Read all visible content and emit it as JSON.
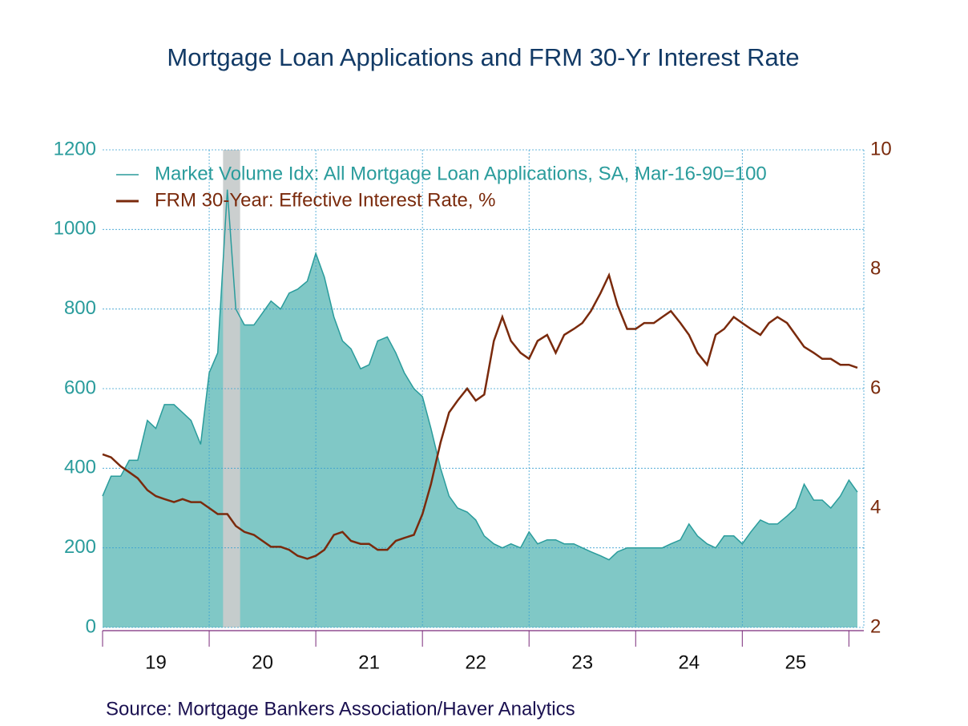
{
  "chart_data": {
    "type": "area-line",
    "title": "Mortgage Loan Applications and FRM 30-Yr Interest Rate",
    "source": "Source:  Mortgage Bankers Association/Haver Analytics",
    "legend": "top-left",
    "grid": true,
    "shading": [
      20.13,
      20.29
    ],
    "x": [
      19,
      19.08,
      19.17,
      19.25,
      19.33,
      19.42,
      19.5,
      19.58,
      19.67,
      19.75,
      19.83,
      19.92,
      20,
      20.08,
      20.17,
      20.25,
      20.33,
      20.42,
      20.5,
      20.58,
      20.67,
      20.75,
      20.83,
      20.92,
      21,
      21.08,
      21.17,
      21.25,
      21.33,
      21.42,
      21.5,
      21.58,
      21.67,
      21.75,
      21.83,
      21.92,
      22,
      22.08,
      22.17,
      22.25,
      22.33,
      22.42,
      22.5,
      22.58,
      22.67,
      22.75,
      22.83,
      22.92,
      23,
      23.08,
      23.17,
      23.25,
      23.33,
      23.42,
      23.5,
      23.58,
      23.67,
      23.75,
      23.83,
      23.92,
      24,
      24.08,
      24.17,
      24.25,
      24.33,
      24.42,
      24.5,
      24.58,
      24.67,
      24.75,
      24.83,
      24.92,
      25,
      25.08,
      25.17,
      25.25,
      25.33,
      25.42,
      25.5,
      25.58,
      25.67,
      25.75,
      25.83,
      25.92,
      26,
      26.08
    ],
    "xlim": [
      19,
      26.14
    ],
    "xticks": [
      {
        "value": 19.5,
        "label": "19"
      },
      {
        "value": 20.5,
        "label": "20"
      },
      {
        "value": 21.5,
        "label": "21"
      },
      {
        "value": 22.5,
        "label": "22"
      },
      {
        "value": 23.5,
        "label": "23"
      },
      {
        "value": 24.5,
        "label": "24"
      },
      {
        "value": 25.5,
        "label": "25"
      }
    ],
    "ylim": [
      0,
      1200
    ],
    "yticks": [
      0,
      200,
      400,
      600,
      800,
      1000,
      1200
    ],
    "y2lim": [
      2,
      10
    ],
    "y2ticks": [
      2,
      4,
      6,
      8,
      10
    ],
    "series": [
      {
        "name": "Market Volume Idx: All Mortgage Loan Applications, SA, Mar-16-90=100",
        "color": "#2a9c9c",
        "fill": "#80c8c6",
        "values": [
          330,
          380,
          380,
          420,
          420,
          520,
          500,
          560,
          560,
          540,
          520,
          460,
          640,
          690,
          1100,
          800,
          760,
          760,
          790,
          820,
          800,
          840,
          850,
          870,
          940,
          880,
          780,
          720,
          700,
          650,
          660,
          720,
          730,
          690,
          640,
          600,
          580,
          500,
          400,
          330,
          300,
          290,
          270,
          230,
          210,
          200,
          210,
          200,
          240,
          210,
          220,
          220,
          210,
          210,
          200,
          190,
          180,
          170,
          190,
          200,
          200,
          200,
          200,
          200,
          210,
          220,
          260,
          230,
          210,
          200,
          230,
          230,
          210,
          240,
          270,
          260,
          260,
          280,
          300,
          360,
          320,
          320,
          300,
          330,
          370,
          340
        ]
      },
      {
        "name": "FRM 30-Year: Effective Interest Rate, %",
        "color": "#7a2a0c",
        "axis": "y2",
        "values": [
          4.9,
          4.85,
          4.7,
          4.6,
          4.5,
          4.3,
          4.2,
          4.15,
          4.1,
          4.15,
          4.1,
          4.1,
          4.0,
          3.9,
          3.9,
          3.7,
          3.6,
          3.55,
          3.45,
          3.35,
          3.35,
          3.3,
          3.2,
          3.15,
          3.2,
          3.3,
          3.55,
          3.6,
          3.45,
          3.4,
          3.4,
          3.3,
          3.3,
          3.45,
          3.5,
          3.55,
          3.9,
          4.4,
          5.1,
          5.6,
          5.8,
          6.0,
          5.8,
          5.9,
          6.8,
          7.2,
          6.8,
          6.6,
          6.5,
          6.8,
          6.9,
          6.6,
          6.9,
          7.0,
          7.1,
          7.3,
          7.6,
          7.9,
          7.4,
          7.0,
          7.0,
          7.1,
          7.1,
          7.2,
          7.3,
          7.1,
          6.9,
          6.6,
          6.4,
          6.9,
          7.0,
          7.2,
          7.1,
          7.0,
          6.9,
          7.1,
          7.2,
          7.1,
          6.9,
          6.7,
          6.6,
          6.5,
          6.5,
          6.4,
          6.4,
          6.35
        ]
      }
    ]
  }
}
